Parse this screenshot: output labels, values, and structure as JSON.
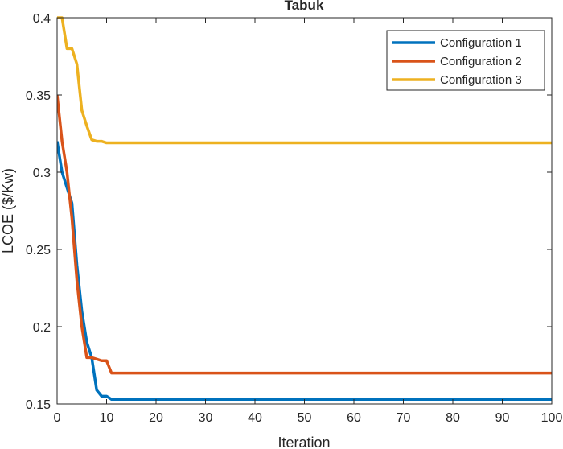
{
  "chart_data": {
    "type": "line",
    "title": "Tabuk",
    "xlabel": "Iteration",
    "ylabel": "LCOE ($/Kw)",
    "xlim": [
      0,
      100
    ],
    "ylim": [
      0.15,
      0.4
    ],
    "xticks": [
      0,
      10,
      20,
      30,
      40,
      50,
      60,
      70,
      80,
      90,
      100
    ],
    "yticks": [
      0.15,
      0.2,
      0.25,
      0.3,
      0.35,
      0.4
    ],
    "xtick_labels": [
      "0",
      "10",
      "20",
      "30",
      "40",
      "50",
      "60",
      "70",
      "80",
      "90",
      "100"
    ],
    "ytick_labels": [
      "0.15",
      "0.2",
      "0.25",
      "0.3",
      "0.35",
      "0.4"
    ],
    "grid": false,
    "legend_position": "top-right",
    "series": [
      {
        "name": "Configuration 1",
        "color": "#0072BD",
        "x": [
          0,
          1,
          2,
          3,
          4,
          5,
          6,
          7,
          8,
          9,
          10,
          11,
          100
        ],
        "y": [
          0.32,
          0.3,
          0.29,
          0.28,
          0.24,
          0.21,
          0.19,
          0.18,
          0.159,
          0.155,
          0.155,
          0.153,
          0.153
        ]
      },
      {
        "name": "Configuration 2",
        "color": "#D95319",
        "x": [
          0,
          1,
          2,
          3,
          4,
          5,
          6,
          7,
          8,
          9,
          10,
          11,
          100
        ],
        "y": [
          0.35,
          0.32,
          0.3,
          0.27,
          0.23,
          0.2,
          0.18,
          0.18,
          0.179,
          0.178,
          0.178,
          0.17,
          0.17
        ]
      },
      {
        "name": "Configuration 3",
        "color": "#EDB120",
        "x": [
          0,
          1,
          2,
          3,
          4,
          5,
          6,
          7,
          8,
          9,
          10,
          11,
          100
        ],
        "y": [
          0.4,
          0.4,
          0.38,
          0.38,
          0.37,
          0.34,
          0.33,
          0.321,
          0.32,
          0.32,
          0.319,
          0.319,
          0.319
        ]
      }
    ]
  }
}
